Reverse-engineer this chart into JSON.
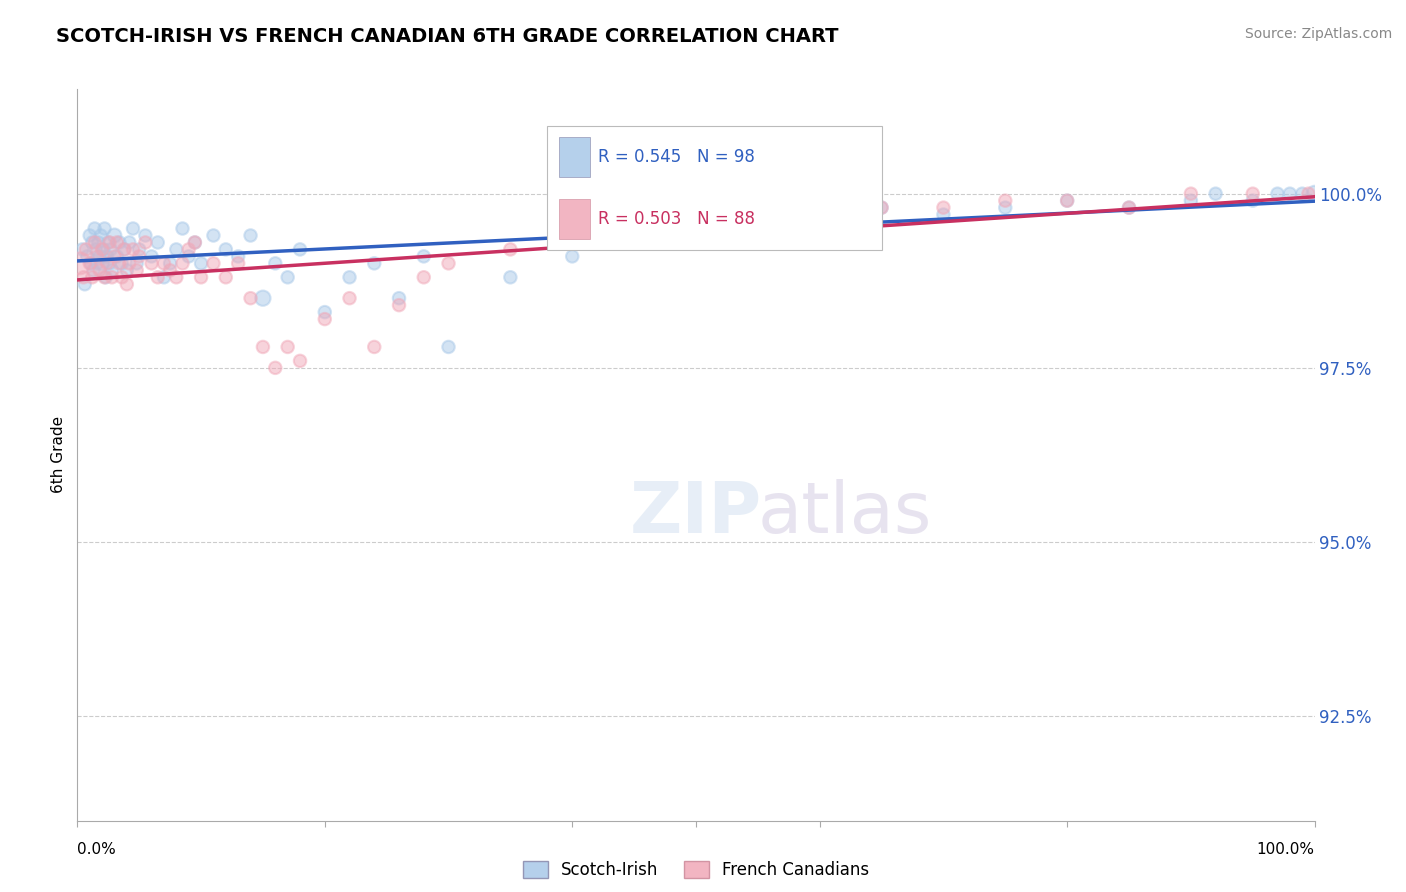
{
  "title": "SCOTCH-IRISH VS FRENCH CANADIAN 6TH GRADE CORRELATION CHART",
  "source": "Source: ZipAtlas.com",
  "ylabel": "6th Grade",
  "ytick_values": [
    92.5,
    95.0,
    97.5,
    100.0
  ],
  "xlim": [
    0.0,
    100.0
  ],
  "ylim": [
    91.0,
    101.5
  ],
  "legend_blue_label": "Scotch-Irish",
  "legend_pink_label": "French Canadians",
  "r_blue": 0.545,
  "n_blue": 98,
  "r_pink": 0.503,
  "n_pink": 88,
  "blue_color": "#a8c8e8",
  "pink_color": "#f0a8b8",
  "blue_line_color": "#3060c0",
  "pink_line_color": "#c83060",
  "watermark": "ZIPatlas",
  "blue_scatter_x": [
    0.4,
    0.6,
    0.8,
    1.0,
    1.1,
    1.2,
    1.3,
    1.4,
    1.5,
    1.6,
    1.7,
    1.8,
    1.9,
    2.0,
    2.1,
    2.2,
    2.3,
    2.4,
    2.5,
    2.6,
    2.7,
    2.8,
    3.0,
    3.2,
    3.4,
    3.6,
    3.8,
    4.0,
    4.2,
    4.5,
    4.8,
    5.0,
    5.5,
    6.0,
    6.5,
    7.0,
    7.5,
    8.0,
    8.5,
    9.0,
    9.5,
    10.0,
    11.0,
    12.0,
    13.0,
    14.0,
    15.0,
    16.0,
    17.0,
    18.0,
    20.0,
    22.0,
    24.0,
    26.0,
    28.0,
    30.0,
    35.0,
    40.0,
    45.0,
    50.0,
    55.0,
    60.0,
    65.0,
    70.0,
    75.0,
    80.0,
    85.0,
    90.0,
    92.0,
    95.0,
    97.0,
    98.0,
    99.0,
    100.0
  ],
  "blue_scatter_y": [
    99.2,
    98.7,
    99.1,
    99.4,
    99.0,
    99.3,
    98.9,
    99.5,
    99.2,
    99.0,
    99.3,
    99.1,
    99.4,
    99.0,
    99.2,
    99.5,
    98.8,
    99.1,
    99.3,
    99.0,
    99.2,
    98.9,
    99.4,
    99.1,
    99.3,
    99.0,
    99.2,
    98.9,
    99.3,
    99.5,
    99.0,
    99.2,
    99.4,
    99.1,
    99.3,
    98.8,
    99.0,
    99.2,
    99.5,
    99.1,
    99.3,
    99.0,
    99.4,
    99.2,
    99.1,
    99.4,
    98.5,
    99.0,
    98.8,
    99.2,
    98.3,
    98.8,
    99.0,
    98.5,
    99.1,
    97.8,
    98.8,
    99.1,
    99.3,
    99.5,
    99.6,
    99.7,
    99.8,
    99.7,
    99.8,
    99.9,
    99.8,
    99.9,
    100.0,
    99.9,
    100.0,
    100.0,
    100.0,
    100.0
  ],
  "blue_scatter_sizes": [
    80,
    80,
    80,
    80,
    80,
    80,
    80,
    80,
    80,
    80,
    80,
    80,
    80,
    100,
    80,
    80,
    80,
    80,
    80,
    80,
    80,
    80,
    100,
    80,
    80,
    80,
    80,
    80,
    80,
    80,
    80,
    80,
    80,
    80,
    80,
    80,
    80,
    80,
    80,
    80,
    80,
    80,
    80,
    80,
    80,
    80,
    120,
    80,
    80,
    80,
    80,
    80,
    80,
    80,
    80,
    80,
    80,
    80,
    80,
    80,
    80,
    80,
    80,
    80,
    80,
    80,
    80,
    80,
    80,
    80,
    80,
    80,
    80,
    130
  ],
  "pink_scatter_x": [
    0.2,
    0.5,
    0.7,
    1.0,
    1.2,
    1.4,
    1.6,
    1.8,
    2.0,
    2.2,
    2.4,
    2.6,
    2.8,
    3.0,
    3.2,
    3.4,
    3.6,
    3.8,
    4.0,
    4.2,
    4.5,
    4.8,
    5.0,
    5.5,
    6.0,
    6.5,
    7.0,
    7.5,
    8.0,
    8.5,
    9.0,
    9.5,
    10.0,
    11.0,
    12.0,
    13.0,
    14.0,
    15.0,
    16.0,
    17.0,
    18.0,
    20.0,
    22.0,
    24.0,
    26.0,
    28.0,
    30.0,
    35.0,
    40.0,
    45.0,
    50.0,
    55.0,
    60.0,
    65.0,
    70.0,
    75.0,
    80.0,
    85.0,
    90.0,
    95.0,
    99.5
  ],
  "pink_scatter_y": [
    99.0,
    98.8,
    99.2,
    99.0,
    98.8,
    99.3,
    99.1,
    98.9,
    99.2,
    98.8,
    99.0,
    99.3,
    98.8,
    99.1,
    99.3,
    99.0,
    98.8,
    99.2,
    98.7,
    99.0,
    99.2,
    98.9,
    99.1,
    99.3,
    99.0,
    98.8,
    99.0,
    98.9,
    98.8,
    99.0,
    99.2,
    99.3,
    98.8,
    99.0,
    98.8,
    99.0,
    98.5,
    97.8,
    97.5,
    97.8,
    97.6,
    98.2,
    98.5,
    97.8,
    98.4,
    98.8,
    99.0,
    99.2,
    99.4,
    99.5,
    99.6,
    99.7,
    99.7,
    99.8,
    99.8,
    99.9,
    99.9,
    99.8,
    100.0,
    100.0,
    100.0
  ],
  "pink_scatter_sizes": [
    250,
    80,
    80,
    80,
    80,
    80,
    80,
    80,
    80,
    80,
    80,
    80,
    80,
    80,
    80,
    80,
    80,
    80,
    80,
    80,
    80,
    80,
    80,
    80,
    80,
    80,
    80,
    80,
    80,
    80,
    80,
    80,
    80,
    80,
    80,
    80,
    80,
    80,
    80,
    80,
    80,
    80,
    80,
    80,
    80,
    80,
    80,
    80,
    80,
    80,
    80,
    80,
    80,
    80,
    80,
    80,
    80,
    80,
    80,
    80,
    80
  ]
}
